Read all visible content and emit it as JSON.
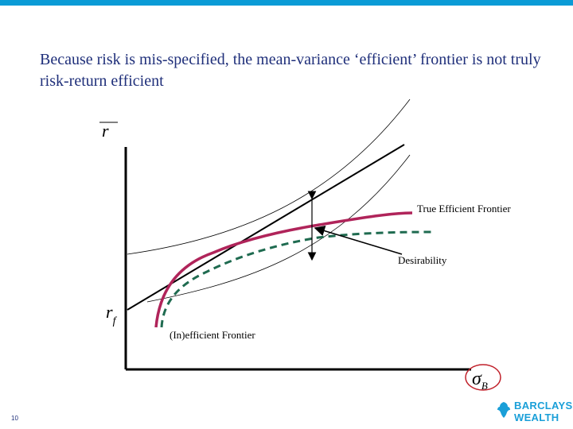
{
  "title": "Because risk is mis-specified, the mean-variance ‘efficient’ frontier is not truly risk-return efficient",
  "slide_number": "10",
  "diagram": {
    "y_axis_symbol": "r",
    "rf_symbol": "r",
    "rf_subscript": "f",
    "x_axis_symbol": "σ",
    "x_axis_subscript": "B",
    "label_true_frontier": "True Efficient Frontier",
    "label_desirability": "Desirability",
    "label_inefficient_frontier": "(In)efficient Frontier"
  },
  "colors": {
    "accent_bar": "#0a9bd6",
    "true_frontier": "#b0245a",
    "inefficient_frontier": "#1f6b50",
    "title_text": "#1f2f7a",
    "logo": "#1a9fd8"
  },
  "logo": {
    "line1": "BARCLAYS",
    "line2": "WEALTH"
  }
}
